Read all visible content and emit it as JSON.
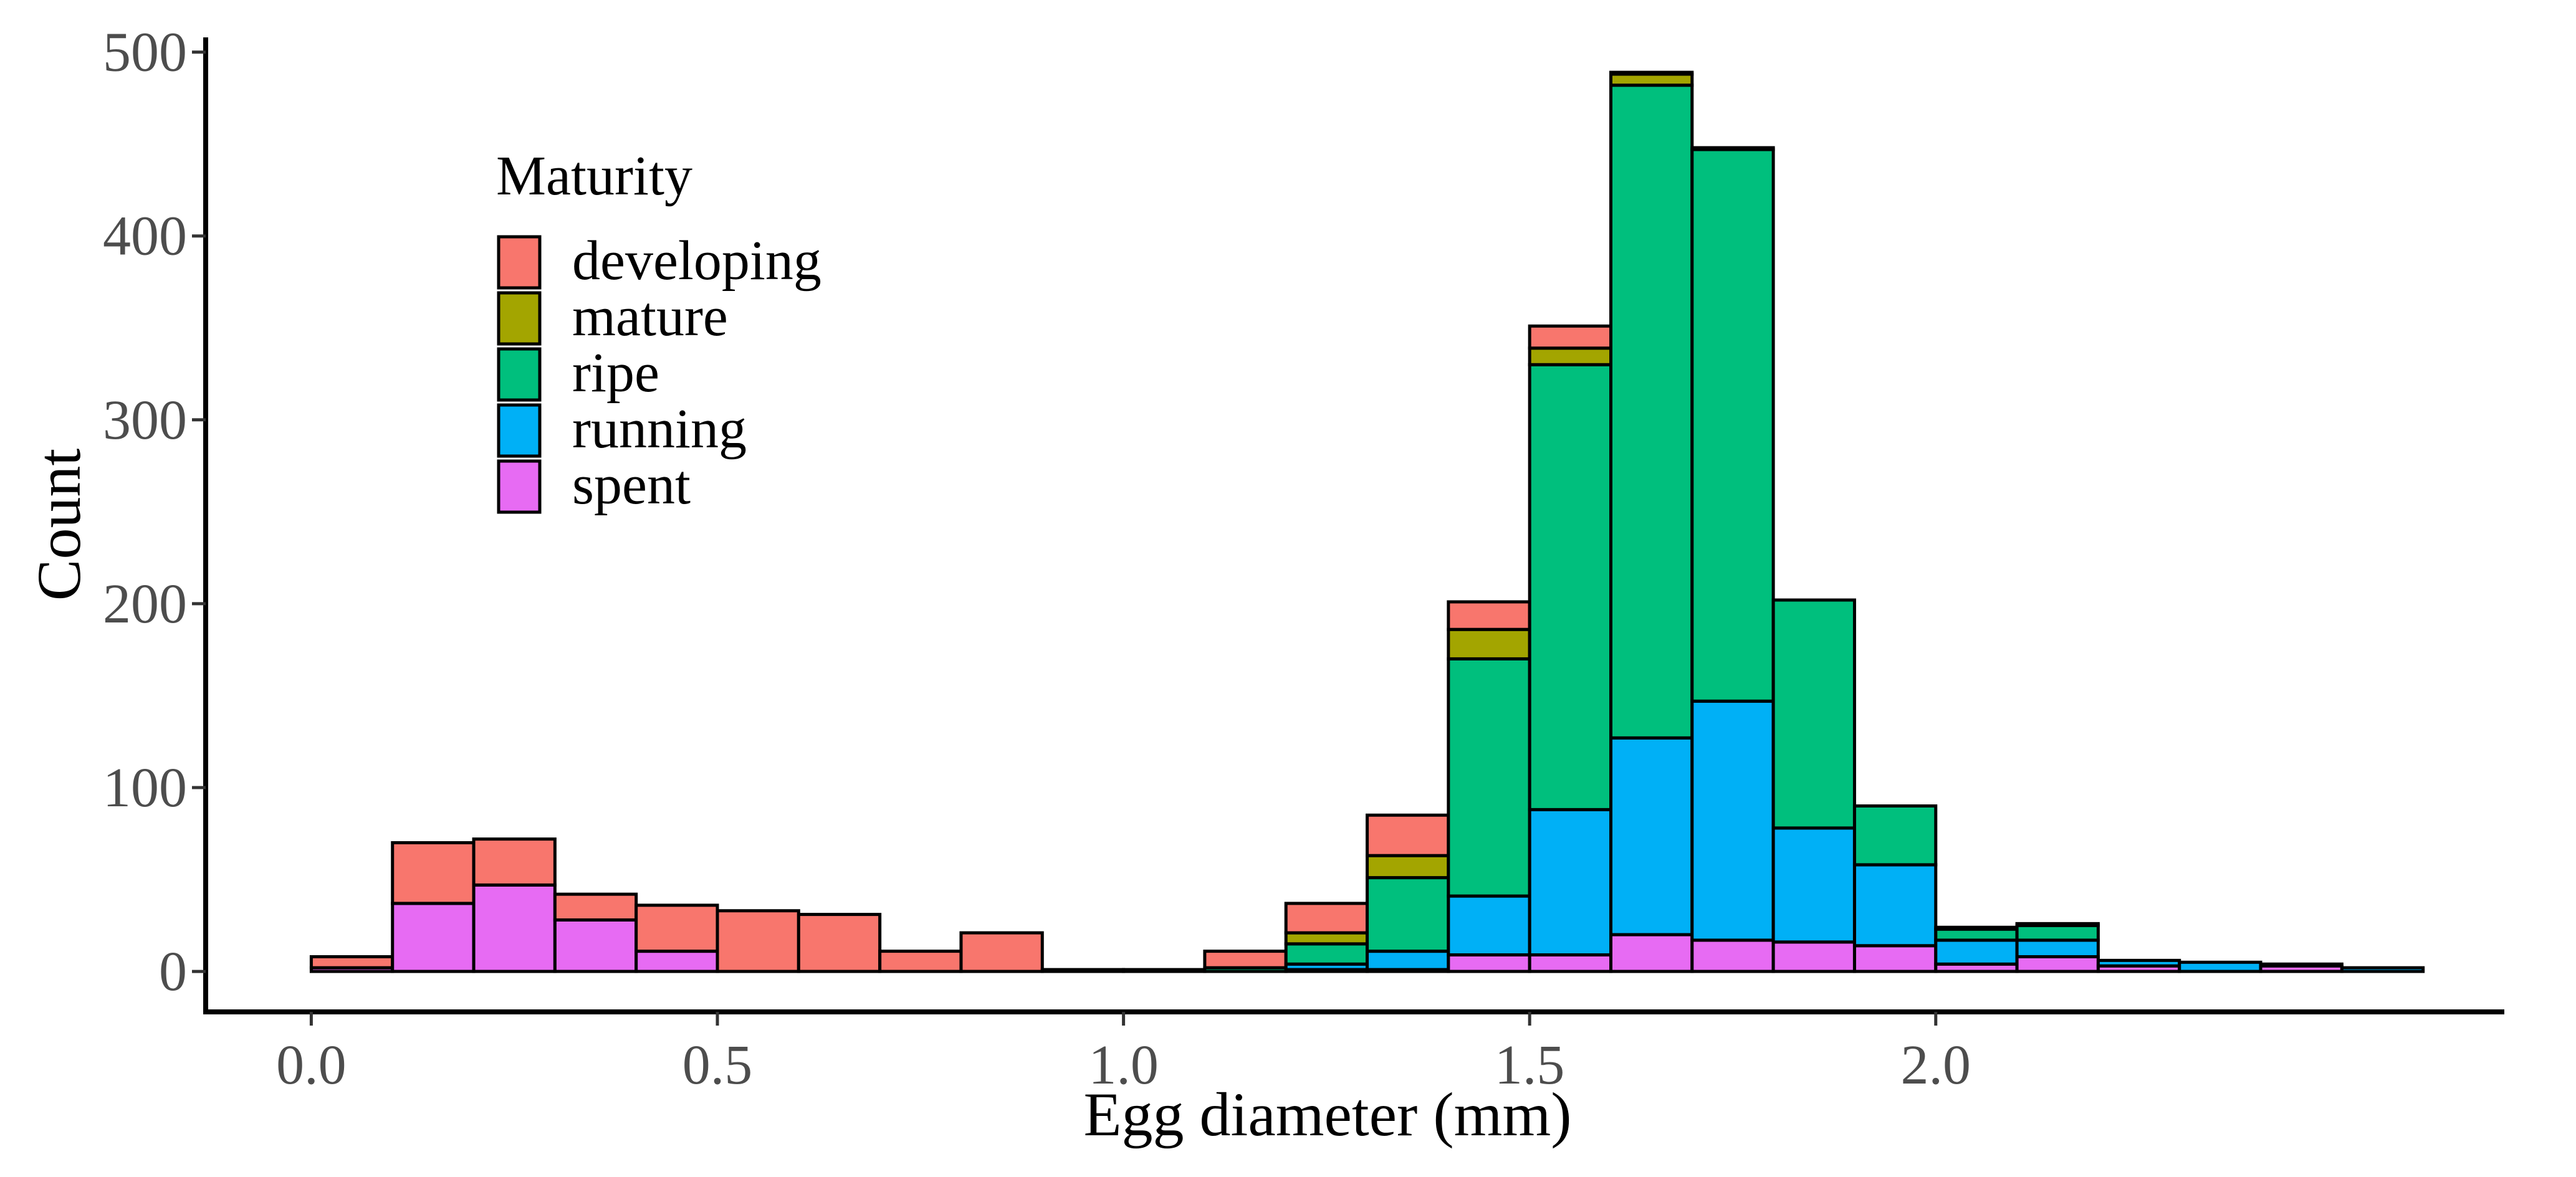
{
  "chart_data": {
    "type": "bar",
    "stacked": true,
    "title": "",
    "xlabel": "Egg diameter (mm)",
    "ylabel": "Count",
    "xlim": [
      -0.13,
      2.7
    ],
    "ylim": [
      -22,
      508
    ],
    "x_ticks": [
      0.0,
      0.5,
      1.0,
      1.5,
      2.0
    ],
    "x_tick_labels": [
      "0.0",
      "0.5",
      "1.0",
      "1.5",
      "2.0"
    ],
    "y_ticks": [
      0,
      100,
      200,
      300,
      400,
      500
    ],
    "y_tick_labels": [
      "0",
      "100",
      "200",
      "300",
      "400",
      "500"
    ],
    "grid": false,
    "legend": {
      "title": "Maturity",
      "placement": "top-left, inside plot"
    },
    "bin_width": 0.1,
    "bin_starts": [
      0.0,
      0.1,
      0.2,
      0.3,
      0.4,
      0.5,
      0.6,
      0.7,
      0.8,
      0.9,
      1.0,
      1.1,
      1.2,
      1.3,
      1.4,
      1.5,
      1.6,
      1.7,
      1.8,
      1.9,
      2.0,
      2.1,
      2.2,
      2.3,
      2.4,
      2.5
    ],
    "series": [
      {
        "name": "spent",
        "color": "#E76BF3",
        "values": [
          2,
          37,
          47,
          28,
          11,
          0,
          0,
          0,
          0,
          0,
          0,
          0,
          1,
          1,
          9,
          9,
          20,
          17,
          16,
          14,
          4,
          8,
          3,
          0,
          3,
          0
        ]
      },
      {
        "name": "running",
        "color": "#00B0F6",
        "values": [
          0,
          0,
          0,
          0,
          0,
          0,
          0,
          0,
          0,
          0,
          0,
          0,
          3,
          10,
          32,
          79,
          107,
          130,
          62,
          44,
          13,
          9,
          3,
          5,
          1,
          2
        ]
      },
      {
        "name": "ripe",
        "color": "#00BF7D",
        "values": [
          0,
          0,
          0,
          0,
          0,
          0,
          0,
          0,
          0,
          0,
          0,
          2,
          11,
          40,
          129,
          242,
          355,
          300,
          124,
          32,
          6,
          8,
          0,
          0,
          0,
          0
        ]
      },
      {
        "name": "mature",
        "color": "#A3A500",
        "values": [
          0,
          0,
          0,
          0,
          0,
          0,
          0,
          0,
          0,
          0,
          0,
          0,
          6,
          12,
          16,
          9,
          6,
          1,
          0,
          0,
          0,
          0,
          0,
          0,
          0,
          0
        ]
      },
      {
        "name": "developing",
        "color": "#F8766D",
        "values": [
          6,
          33,
          25,
          14,
          25,
          33,
          31,
          11,
          21,
          1,
          1,
          9,
          16,
          22,
          15,
          12,
          1,
          0,
          0,
          0,
          1,
          1,
          0,
          0,
          0,
          0
        ]
      }
    ],
    "legend_order": [
      "developing",
      "mature",
      "ripe",
      "running",
      "spent"
    ]
  }
}
